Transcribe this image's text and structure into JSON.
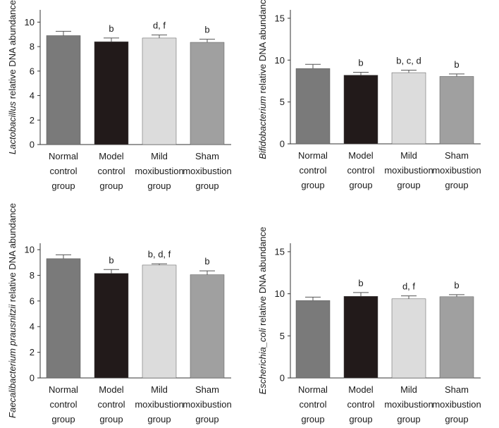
{
  "bar_colors": [
    "#7a7a7a",
    "#221a1a",
    "#dcdcdc",
    "#a0a0a0"
  ],
  "chart_data": [
    {
      "type": "bar",
      "ylabel_italic": "Lactobacillus",
      "ylabel_rest": " relative DNA abundance",
      "categories": [
        [
          "Normal",
          "control",
          "group"
        ],
        [
          "Model",
          "control",
          "group"
        ],
        [
          "Mild",
          "moxibustion",
          "group"
        ],
        [
          "Sham",
          "moxibustion",
          "group"
        ]
      ],
      "values": [
        8.9,
        8.4,
        8.7,
        8.35
      ],
      "errors": [
        0.35,
        0.3,
        0.25,
        0.25
      ],
      "annotations": [
        "",
        "b",
        "d, f",
        "b"
      ],
      "ylim": [
        0,
        11
      ],
      "yticks": [
        0,
        2,
        4,
        6,
        8,
        10
      ]
    },
    {
      "type": "bar",
      "ylabel_italic": "Bifidobacterium",
      "ylabel_rest": " relative DNA abundance",
      "categories": [
        [
          "Normal",
          "control",
          "group"
        ],
        [
          "Model",
          "control",
          "group"
        ],
        [
          "Mild",
          "moxibustion",
          "group"
        ],
        [
          "Sham",
          "moxibustion",
          "group"
        ]
      ],
      "values": [
        9.0,
        8.2,
        8.5,
        8.05
      ],
      "errors": [
        0.5,
        0.35,
        0.3,
        0.3
      ],
      "annotations": [
        "",
        "b",
        "b, c, d",
        "b"
      ],
      "ylim": [
        0,
        16
      ],
      "yticks": [
        0,
        5,
        10,
        15
      ]
    },
    {
      "type": "bar",
      "ylabel_italic": "Faecalibacterium prausnitzii",
      "ylabel_rest": " relative DNA abundance",
      "categories": [
        [
          "Normal",
          "control",
          "group"
        ],
        [
          "Model",
          "control",
          "group"
        ],
        [
          "Mild",
          "moxibustion",
          "group"
        ],
        [
          "Sham",
          "moxibustion",
          "group"
        ]
      ],
      "values": [
        9.3,
        8.15,
        8.8,
        8.05
      ],
      "errors": [
        0.3,
        0.3,
        0.1,
        0.3
      ],
      "annotations": [
        "",
        "b",
        "b, d, f",
        "b"
      ],
      "ylim": [
        0,
        10.5
      ],
      "yticks": [
        0,
        2,
        4,
        6,
        8,
        10
      ]
    },
    {
      "type": "bar",
      "ylabel_italic": "Escherichia_coli",
      "ylabel_rest": " relative DNA abundance",
      "categories": [
        [
          "Normal",
          "control",
          "group"
        ],
        [
          "Model",
          "control",
          "group"
        ],
        [
          "Mild",
          "moxibustion",
          "group"
        ],
        [
          "Sham",
          "moxibustion",
          "group"
        ]
      ],
      "values": [
        9.2,
        9.7,
        9.4,
        9.65
      ],
      "errors": [
        0.4,
        0.45,
        0.35,
        0.25
      ],
      "annotations": [
        "",
        "b",
        "d, f",
        "b"
      ],
      "ylim": [
        0,
        16
      ],
      "yticks": [
        0,
        5,
        10,
        15
      ]
    }
  ]
}
